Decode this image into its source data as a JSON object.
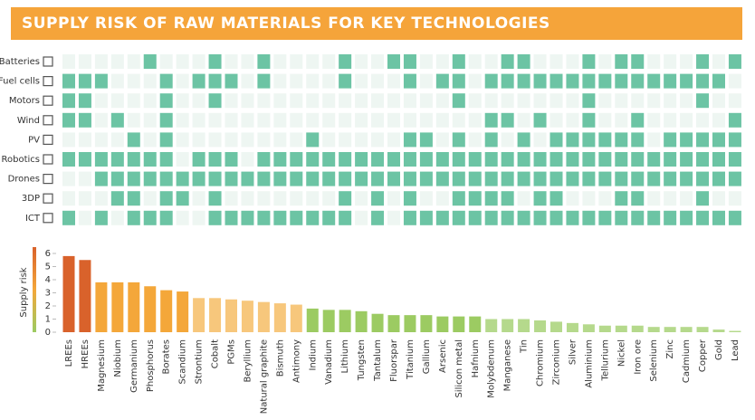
{
  "header": {
    "title": "SUPPLY RISK OF RAW MATERIALS FOR KEY TECHNOLOGIES"
  },
  "chart_data": [
    {
      "type": "matrix",
      "color_on": "#6cc4a4",
      "color_off": "#eef6f2",
      "rows": [
        "Batteries",
        "Fuel cells",
        "Motors",
        "Wind",
        "PV",
        "Robotics",
        "Drones",
        "3DP",
        "ICT"
      ],
      "cells": [
        [
          0,
          0,
          0,
          0,
          0,
          1,
          0,
          0,
          0,
          1,
          0,
          0,
          1,
          0,
          0,
          0,
          0,
          1,
          0,
          0,
          1,
          1,
          0,
          0,
          1,
          0,
          0,
          1,
          1,
          0,
          0,
          0,
          1,
          0,
          1,
          1,
          0,
          0,
          0,
          1,
          0,
          1
        ],
        [
          1,
          1,
          1,
          0,
          0,
          0,
          1,
          0,
          1,
          1,
          1,
          0,
          1,
          0,
          0,
          0,
          0,
          1,
          0,
          0,
          0,
          1,
          0,
          1,
          1,
          0,
          1,
          1,
          1,
          1,
          1,
          1,
          1,
          1,
          1,
          1,
          1,
          1,
          1,
          1,
          1,
          0
        ],
        [
          1,
          1,
          0,
          0,
          0,
          0,
          1,
          0,
          0,
          1,
          0,
          0,
          0,
          0,
          0,
          0,
          0,
          0,
          0,
          0,
          0,
          0,
          0,
          0,
          1,
          0,
          0,
          0,
          0,
          0,
          0,
          0,
          1,
          0,
          0,
          0,
          0,
          0,
          0,
          1,
          0,
          0
        ],
        [
          1,
          1,
          0,
          1,
          0,
          0,
          1,
          0,
          0,
          0,
          0,
          0,
          0,
          0,
          0,
          0,
          0,
          0,
          0,
          0,
          0,
          0,
          0,
          0,
          0,
          0,
          1,
          1,
          0,
          1,
          0,
          0,
          1,
          0,
          0,
          1,
          0,
          0,
          0,
          0,
          0,
          1
        ],
        [
          0,
          0,
          0,
          0,
          1,
          0,
          1,
          0,
          0,
          0,
          0,
          0,
          0,
          0,
          0,
          1,
          0,
          0,
          0,
          0,
          0,
          1,
          1,
          0,
          1,
          0,
          1,
          0,
          1,
          0,
          1,
          1,
          1,
          1,
          1,
          1,
          0,
          1,
          1,
          1,
          1,
          1
        ],
        [
          1,
          1,
          1,
          1,
          1,
          1,
          1,
          0,
          1,
          1,
          1,
          0,
          1,
          1,
          1,
          1,
          1,
          1,
          1,
          1,
          1,
          1,
          1,
          1,
          1,
          1,
          1,
          1,
          1,
          1,
          1,
          1,
          1,
          1,
          1,
          1,
          1,
          1,
          1,
          1,
          1,
          1
        ],
        [
          0,
          0,
          1,
          1,
          1,
          1,
          1,
          1,
          1,
          1,
          1,
          1,
          1,
          1,
          1,
          1,
          1,
          1,
          1,
          1,
          1,
          1,
          1,
          1,
          1,
          1,
          1,
          1,
          1,
          1,
          1,
          1,
          1,
          1,
          1,
          1,
          1,
          1,
          1,
          1,
          1,
          1
        ],
        [
          0,
          0,
          0,
          1,
          1,
          0,
          1,
          1,
          0,
          1,
          0,
          0,
          0,
          0,
          0,
          0,
          0,
          1,
          0,
          1,
          0,
          1,
          0,
          0,
          1,
          1,
          1,
          1,
          0,
          1,
          1,
          0,
          0,
          0,
          1,
          1,
          0,
          0,
          0,
          1,
          0,
          0
        ],
        [
          1,
          0,
          1,
          0,
          1,
          1,
          1,
          0,
          0,
          1,
          1,
          1,
          1,
          1,
          1,
          1,
          1,
          1,
          0,
          1,
          0,
          1,
          1,
          1,
          1,
          1,
          1,
          1,
          1,
          1,
          1,
          1,
          1,
          1,
          1,
          1,
          1,
          1,
          1,
          1,
          1,
          1
        ]
      ]
    },
    {
      "type": "bar",
      "ylabel": "Supply risk",
      "ylim": [
        0,
        6
      ],
      "yticks": [
        0,
        1,
        2,
        3,
        4,
        5,
        6
      ],
      "categories": [
        "LREEs",
        "HREEs",
        "Magnesium",
        "Niobium",
        "Germanium",
        "Phosphorus",
        "Borates",
        "Scandium",
        "Strontium",
        "Cobalt",
        "PGMs",
        "Beryllium",
        "Natural graphite",
        "Bismuth",
        "Antimony",
        "Indium",
        "Vanadium",
        "Lithium",
        "Tungsten",
        "Tantalum",
        "Fluorspar",
        "Titanium",
        "Gallium",
        "Arsenic",
        "Silicon metal",
        "Hafnium",
        "Molybdenum",
        "Manganese",
        "Tin",
        "Chromium",
        "Zirconium",
        "Silver",
        "Aluminium",
        "Tellurium",
        "Nickel",
        "Iron ore",
        "Selenium",
        "Zinc",
        "Cadmium",
        "Copper",
        "Gold",
        "Lead"
      ],
      "values": [
        5.8,
        5.5,
        3.8,
        3.8,
        3.8,
        3.5,
        3.2,
        3.1,
        2.6,
        2.6,
        2.5,
        2.4,
        2.3,
        2.2,
        2.1,
        1.8,
        1.7,
        1.7,
        1.6,
        1.4,
        1.3,
        1.3,
        1.3,
        1.2,
        1.2,
        1.2,
        1.0,
        1.0,
        1.0,
        0.9,
        0.8,
        0.7,
        0.6,
        0.5,
        0.5,
        0.5,
        0.4,
        0.4,
        0.4,
        0.4,
        0.2,
        0.1
      ],
      "colors": [
        "#d9622b",
        "#d9622b",
        "#f4a73a",
        "#f4a73a",
        "#f4a73a",
        "#f4a73a",
        "#f4a73a",
        "#f4a73a",
        "#f7c77c",
        "#f7c77c",
        "#f7c77c",
        "#f7c77c",
        "#f7c77c",
        "#f7c77c",
        "#f7c77c",
        "#9ccb62",
        "#9ccb62",
        "#9ccb62",
        "#9ccb62",
        "#9ccb62",
        "#9ccb62",
        "#9ccb62",
        "#9ccb62",
        "#9ccb62",
        "#9ccb62",
        "#9ccb62",
        "#b5d98c",
        "#b5d98c",
        "#b5d98c",
        "#b5d98c",
        "#b5d98c",
        "#b5d98c",
        "#b5d98c",
        "#b5d98c",
        "#b5d98c",
        "#b5d98c",
        "#b5d98c",
        "#b5d98c",
        "#b5d98c",
        "#b5d98c",
        "#b5d98c",
        "#b5d98c"
      ],
      "label_colors": [
        "#e07b30",
        "#e07b30",
        "#e07b30",
        "#e07b30",
        "#e07b30",
        "#e07b30",
        "#e07b30",
        "#e07b30",
        "#e07b30",
        "#e07b30",
        "#e07b30",
        "#e07b30",
        "#e07b30",
        "#e07b30",
        "#e07b30",
        "#e07b30",
        "#e07b30",
        "#e07b30",
        "#e07b30",
        "#e07b30",
        "#e07b30",
        "#e07b30",
        "#333333",
        "#333333",
        "#e07b30",
        "#e07b30",
        "#333333",
        "#333333",
        "#333333",
        "#333333",
        "#333333",
        "#333333",
        "#333333",
        "#333333",
        "#333333",
        "#333333",
        "#333333",
        "#333333",
        "#333333",
        "#333333",
        "#333333",
        "#333333"
      ]
    }
  ]
}
